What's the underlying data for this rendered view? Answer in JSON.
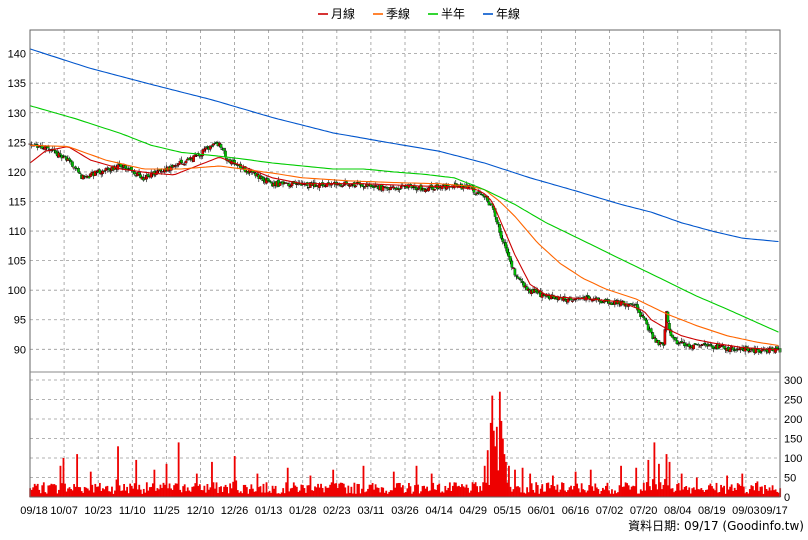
{
  "legend": [
    {
      "label": "月線",
      "color": "#cc0000"
    },
    {
      "label": "季線",
      "color": "#ff6600"
    },
    {
      "label": "半年",
      "color": "#00cc00"
    },
    {
      "label": "年線",
      "color": "#0055cc"
    }
  ],
  "footer": {
    "text": "資料日期: 09/17  (Goodinfo.tw)"
  },
  "chart_data": {
    "type": "candlestick",
    "x_ticks": [
      "09/18",
      "10/07",
      "10/23",
      "11/10",
      "11/25",
      "12/10",
      "12/26",
      "01/13",
      "01/28",
      "02/23",
      "03/11",
      "03/26",
      "04/14",
      "04/29",
      "05/15",
      "06/01",
      "06/16",
      "07/02",
      "07/20",
      "08/04",
      "08/19",
      "09/03",
      "09/17"
    ],
    "price_axis": {
      "ylim": [
        86.5,
        144
      ],
      "ticks": [
        90,
        95,
        100,
        105,
        110,
        115,
        120,
        125,
        130,
        135,
        140
      ]
    },
    "volume_axis": {
      "ylim": [
        0,
        300
      ],
      "ticks": [
        0,
        50,
        100,
        150,
        200,
        250,
        300
      ]
    },
    "colors": {
      "up": "#dd0000",
      "down": "#00bb00",
      "volume": "#ee0000",
      "grid": "#999999"
    },
    "close_anchors": [
      [
        0,
        125
      ],
      [
        10,
        124
      ],
      [
        25,
        122
      ],
      [
        35,
        119
      ],
      [
        45,
        120
      ],
      [
        60,
        121
      ],
      [
        75,
        119
      ],
      [
        85,
        120
      ],
      [
        95,
        121
      ],
      [
        105,
        122
      ],
      [
        118,
        124
      ],
      [
        125,
        125
      ],
      [
        130,
        122
      ],
      [
        145,
        120
      ],
      [
        160,
        118
      ],
      [
        175,
        117.8
      ],
      [
        195,
        117.8
      ],
      [
        210,
        118
      ],
      [
        220,
        117.8
      ],
      [
        235,
        117.2
      ],
      [
        250,
        117.5
      ],
      [
        260,
        117.2
      ],
      [
        270,
        117.5
      ],
      [
        280,
        117.6
      ],
      [
        290,
        117.3
      ],
      [
        295,
        116.5
      ],
      [
        300,
        116
      ],
      [
        305,
        114
      ],
      [
        310,
        110
      ],
      [
        315,
        106
      ],
      [
        320,
        103
      ],
      [
        325,
        101
      ],
      [
        330,
        100
      ],
      [
        340,
        99
      ],
      [
        350,
        98.5
      ],
      [
        360,
        98.5
      ],
      [
        370,
        98.5
      ],
      [
        380,
        98
      ],
      [
        390,
        97.8
      ],
      [
        400,
        97.3
      ],
      [
        405,
        95
      ],
      [
        410,
        92.5
      ],
      [
        413,
        91.2
      ],
      [
        418,
        90.8
      ],
      [
        420,
        96
      ],
      [
        422,
        93
      ],
      [
        425,
        91.5
      ],
      [
        430,
        91
      ],
      [
        440,
        90.6
      ],
      [
        450,
        90.4
      ],
      [
        460,
        90.2
      ],
      [
        470,
        90
      ],
      [
        480,
        89.8
      ],
      [
        495,
        89.9
      ]
    ],
    "series": [
      {
        "name": "月線",
        "color": "#cc0000",
        "points": [
          [
            0,
            121.5
          ],
          [
            10,
            123.5
          ],
          [
            25,
            124.3
          ],
          [
            40,
            122
          ],
          [
            60,
            120.5
          ],
          [
            80,
            119.8
          ],
          [
            95,
            119.5
          ],
          [
            110,
            121
          ],
          [
            125,
            122.5
          ],
          [
            140,
            121
          ],
          [
            160,
            119
          ],
          [
            180,
            118
          ],
          [
            200,
            118
          ],
          [
            220,
            118
          ],
          [
            240,
            117.8
          ],
          [
            260,
            117.6
          ],
          [
            280,
            117.5
          ],
          [
            295,
            117
          ],
          [
            300,
            116.3
          ],
          [
            305,
            115
          ],
          [
            310,
            112
          ],
          [
            315,
            109
          ],
          [
            320,
            106
          ],
          [
            325,
            103.5
          ],
          [
            330,
            101
          ],
          [
            340,
            99.3
          ],
          [
            350,
            98.8
          ],
          [
            370,
            98.5
          ],
          [
            390,
            98
          ],
          [
            405,
            96.5
          ],
          [
            410,
            95
          ],
          [
            420,
            93.5
          ],
          [
            430,
            92.3
          ],
          [
            440,
            91.6
          ],
          [
            450,
            91.1
          ],
          [
            470,
            90.3
          ],
          [
            495,
            89.9
          ]
        ]
      },
      {
        "name": "季線",
        "color": "#ff6600",
        "points": [
          [
            0,
            124.5
          ],
          [
            25,
            124.3
          ],
          [
            50,
            122
          ],
          [
            75,
            120.5
          ],
          [
            100,
            120.5
          ],
          [
            125,
            121
          ],
          [
            140,
            120.5
          ],
          [
            160,
            119.8
          ],
          [
            180,
            119
          ],
          [
            210,
            118.5
          ],
          [
            240,
            118.2
          ],
          [
            270,
            118
          ],
          [
            290,
            117.6
          ],
          [
            300,
            117
          ],
          [
            310,
            115
          ],
          [
            320,
            112.5
          ],
          [
            335,
            108
          ],
          [
            350,
            104.5
          ],
          [
            365,
            102
          ],
          [
            380,
            100.2
          ],
          [
            400,
            98.5
          ],
          [
            420,
            96
          ],
          [
            440,
            94
          ],
          [
            460,
            92.3
          ],
          [
            480,
            91.2
          ],
          [
            495,
            90.6
          ]
        ]
      },
      {
        "name": "半年",
        "color": "#00cc00",
        "points": [
          [
            0,
            131.2
          ],
          [
            30,
            129
          ],
          [
            60,
            126.5
          ],
          [
            80,
            124.5
          ],
          [
            100,
            123.3
          ],
          [
            120,
            122.8
          ],
          [
            140,
            122.2
          ],
          [
            160,
            121.5
          ],
          [
            180,
            121
          ],
          [
            200,
            120.5
          ],
          [
            220,
            120.5
          ],
          [
            240,
            120
          ],
          [
            260,
            119.6
          ],
          [
            280,
            119
          ],
          [
            300,
            117
          ],
          [
            320,
            114.5
          ],
          [
            340,
            111.5
          ],
          [
            360,
            109
          ],
          [
            380,
            106.5
          ],
          [
            400,
            104
          ],
          [
            420,
            101.5
          ],
          [
            440,
            99
          ],
          [
            460,
            96.8
          ],
          [
            480,
            94.5
          ],
          [
            495,
            92.8
          ]
        ]
      },
      {
        "name": "年線",
        "color": "#0055cc",
        "points": [
          [
            0,
            140.8
          ],
          [
            40,
            137.5
          ],
          [
            80,
            134.8
          ],
          [
            120,
            132.2
          ],
          [
            160,
            129.2
          ],
          [
            200,
            126.6
          ],
          [
            240,
            124.8
          ],
          [
            270,
            123.5
          ],
          [
            300,
            121.5
          ],
          [
            330,
            119
          ],
          [
            360,
            116.8
          ],
          [
            390,
            114.5
          ],
          [
            410,
            113.2
          ],
          [
            430,
            111.4
          ],
          [
            450,
            110
          ],
          [
            470,
            108.8
          ],
          [
            495,
            108.2
          ]
        ]
      }
    ],
    "volume_spikes": [
      [
        20,
        80
      ],
      [
        22,
        100
      ],
      [
        31,
        110
      ],
      [
        40,
        65
      ],
      [
        58,
        130
      ],
      [
        70,
        95
      ],
      [
        82,
        70
      ],
      [
        90,
        85
      ],
      [
        98,
        140
      ],
      [
        110,
        60
      ],
      [
        120,
        90
      ],
      [
        135,
        105
      ],
      [
        150,
        60
      ],
      [
        170,
        75
      ],
      [
        185,
        55
      ],
      [
        200,
        70
      ],
      [
        220,
        80
      ],
      [
        240,
        65
      ],
      [
        255,
        80
      ],
      [
        265,
        60
      ],
      [
        300,
        80
      ],
      [
        302,
        120
      ],
      [
        304,
        190
      ],
      [
        305,
        260
      ],
      [
        306,
        170
      ],
      [
        307,
        130
      ],
      [
        308,
        180
      ],
      [
        310,
        270
      ],
      [
        311,
        195
      ],
      [
        312,
        150
      ],
      [
        313,
        110
      ],
      [
        314,
        90
      ],
      [
        316,
        80
      ],
      [
        320,
        70
      ],
      [
        325,
        75
      ],
      [
        330,
        60
      ],
      [
        345,
        55
      ],
      [
        360,
        65
      ],
      [
        370,
        70
      ],
      [
        390,
        80
      ],
      [
        400,
        75
      ],
      [
        408,
        95
      ],
      [
        412,
        140
      ],
      [
        415,
        85
      ],
      [
        420,
        110
      ],
      [
        422,
        90
      ],
      [
        430,
        60
      ],
      [
        440,
        50
      ],
      [
        460,
        55
      ],
      [
        470,
        60
      ],
      [
        480,
        40
      ],
      [
        490,
        30
      ]
    ],
    "grid": true,
    "legend_position": "top-center"
  }
}
